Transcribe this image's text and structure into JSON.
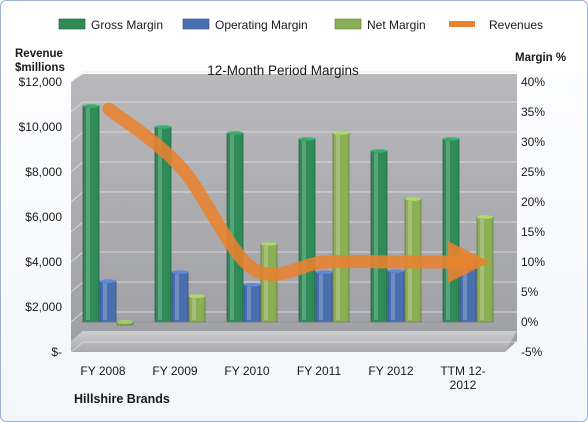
{
  "chart_data": {
    "type": "bar",
    "title": "12-Month Period Margins",
    "company": "Hillshire Brands",
    "categories": [
      "FY 2008",
      "FY 2009",
      "FY 2010",
      "FY 2011",
      "FY 2012",
      "TTM 12-2012"
    ],
    "left_axis": {
      "title_line1": "Revenue",
      "title_line2": "$millions",
      "ylim": [
        0,
        12000
      ],
      "ticks": [
        "$-",
        "$2,000",
        "$4,000",
        "$6,000",
        "$8,000",
        "$10,000",
        "$12,000"
      ]
    },
    "right_axis": {
      "title": "Margin %",
      "ylim": [
        -5,
        40
      ],
      "ticks": [
        "-5%",
        "0%",
        "5%",
        "10%",
        "15%",
        "20%",
        "25%",
        "30%",
        "35%",
        "40%"
      ]
    },
    "series": [
      {
        "name": "Gross Margin",
        "axis": "right",
        "kind": "bar",
        "color": "#2e8b57",
        "values": [
          36,
          32.5,
          31.5,
          30.5,
          28.5,
          30.5
        ]
      },
      {
        "name": "Operating Margin",
        "axis": "right",
        "kind": "bar",
        "color": "#4a6fb0",
        "values": [
          6.8,
          8.3,
          6.2,
          8.3,
          8.5,
          10
        ]
      },
      {
        "name": "Net Margin",
        "axis": "right",
        "kind": "bar",
        "color": "#8cae54",
        "values": [
          -0.5,
          4.3,
          13,
          31.5,
          20.5,
          17.5
        ]
      },
      {
        "name": "Revenues",
        "axis": "left",
        "kind": "line",
        "color": "#e8822f",
        "values": [
          10800,
          8200,
          3700,
          4000,
          4000,
          4000
        ]
      }
    ],
    "legend_position": "top",
    "grid": true
  }
}
